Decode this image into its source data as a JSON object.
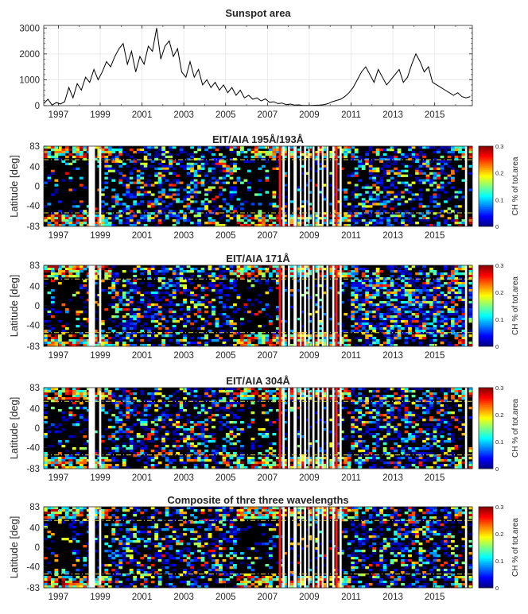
{
  "chart_data": [
    {
      "type": "line",
      "title": "Sunspot area",
      "xlabel": "",
      "ylabel": "",
      "xlim": [
        1996.3,
        2016.8
      ],
      "ylim": [
        0,
        3100
      ],
      "yticks": [
        0,
        1000,
        2000,
        3000
      ],
      "xticks": [
        "1997",
        "1999",
        "2001",
        "2003",
        "2005",
        "2007",
        "2009",
        "2011",
        "2013",
        "2015"
      ],
      "grid": true,
      "series": [
        {
          "x": [
            1996.3,
            1996.5,
            1996.7,
            1996.9,
            1997.1,
            1997.3,
            1997.5,
            1997.7,
            1997.9,
            1998.1,
            1998.3,
            1998.5,
            1998.7,
            1998.9,
            1999.1,
            1999.3,
            1999.5,
            1999.7,
            1999.9,
            2000.1,
            2000.3,
            2000.5,
            2000.7,
            2000.9,
            2001.1,
            2001.3,
            2001.5,
            2001.7,
            2001.9,
            2002.1,
            2002.3,
            2002.5,
            2002.7,
            2002.9,
            2003.1,
            2003.3,
            2003.5,
            2003.7,
            2003.9,
            2004.1,
            2004.3,
            2004.5,
            2004.7,
            2004.9,
            2005.1,
            2005.3,
            2005.5,
            2005.7,
            2005.9,
            2006.1,
            2006.3,
            2006.5,
            2006.7,
            2006.9,
            2007.1,
            2007.3,
            2007.5,
            2007.7,
            2007.9,
            2008.1,
            2008.3,
            2008.5,
            2008.7,
            2008.9,
            2009.1,
            2009.3,
            2009.5,
            2009.7,
            2009.9,
            2010.1,
            2010.3,
            2010.5,
            2010.7,
            2010.9,
            2011.1,
            2011.3,
            2011.5,
            2011.7,
            2011.9,
            2012.1,
            2012.3,
            2012.5,
            2012.7,
            2012.9,
            2013.1,
            2013.3,
            2013.5,
            2013.7,
            2013.9,
            2014.1,
            2014.3,
            2014.5,
            2014.7,
            2014.9,
            2015.1,
            2015.3,
            2015.5,
            2015.7,
            2015.9,
            2016.1,
            2016.3,
            2016.5,
            2016.7
          ],
          "values": [
            80,
            250,
            20,
            120,
            60,
            150,
            700,
            300,
            850,
            600,
            1100,
            900,
            1400,
            1000,
            1300,
            1700,
            1500,
            1900,
            2200,
            2400,
            1600,
            2100,
            1300,
            1900,
            1600,
            2300,
            2100,
            3000,
            1800,
            2300,
            2500,
            1900,
            2200,
            1300,
            1100,
            1700,
            1100,
            1400,
            800,
            1000,
            700,
            900,
            600,
            800,
            500,
            700,
            400,
            600,
            300,
            400,
            250,
            300,
            180,
            260,
            130,
            150,
            80,
            100,
            40,
            60,
            20,
            30,
            10,
            10,
            5,
            15,
            20,
            40,
            80,
            150,
            200,
            250,
            350,
            500,
            700,
            1000,
            1300,
            1500,
            1200,
            900,
            1400,
            1100,
            800,
            1000,
            1200,
            1400,
            900,
            1100,
            1600,
            2000,
            1700,
            1300,
            1500,
            900,
            800,
            700,
            600,
            500,
            400,
            500,
            350,
            300,
            350
          ]
        }
      ]
    },
    {
      "type": "heatmap",
      "title": "EIT/AIA 195Å/193Å",
      "ylabel": "Latitude [deg]",
      "yticks": [
        "83",
        "40",
        "0",
        "-40",
        "-83"
      ],
      "xticks": [
        "1997",
        "1999",
        "2001",
        "2003",
        "2005",
        "2007",
        "2009",
        "2011",
        "2013",
        "2015"
      ],
      "colorbar_label": "CH % of tot.area",
      "colorbar_ticks": [
        "0",
        "0.1",
        "0.2",
        "0.3"
      ],
      "clim": [
        0,
        0.3
      ]
    },
    {
      "type": "heatmap",
      "title": "EIT/AIA 171Å",
      "ylabel": "Latitude [deg]",
      "yticks": [
        "83",
        "40",
        "0",
        "-40",
        "-83"
      ],
      "xticks": [
        "1997",
        "1999",
        "2001",
        "2003",
        "2005",
        "2007",
        "2009",
        "2011",
        "2013",
        "2015"
      ],
      "colorbar_label": "CH % of tot.area",
      "colorbar_ticks": [
        "0",
        "0.1",
        "0.2",
        "0.3"
      ],
      "clim": [
        0,
        0.3
      ]
    },
    {
      "type": "heatmap",
      "title": "EIT/AIA 304Å",
      "ylabel": "Latitude [deg]",
      "yticks": [
        "83",
        "40",
        "0",
        "-40",
        "-83"
      ],
      "xticks": [
        "1997",
        "1999",
        "2001",
        "2003",
        "2005",
        "2007",
        "2009",
        "2011",
        "2013",
        "2015"
      ],
      "colorbar_label": "CH % of tot.area",
      "colorbar_ticks": [
        "0",
        "0.1",
        "0.2",
        "0.3"
      ],
      "clim": [
        0,
        0.3
      ]
    },
    {
      "type": "heatmap",
      "title": "Composite of thre three wavelengths",
      "ylabel": "Latitude [deg]",
      "yticks": [
        "83",
        "40",
        "0",
        "-40",
        "-83"
      ],
      "xticks": [
        "1997",
        "1999",
        "2001",
        "2003",
        "2005",
        "2007",
        "2009",
        "2011",
        "2013",
        "2015"
      ],
      "colorbar_label": "CH % of tot.area",
      "colorbar_ticks": [
        "0",
        "0.1",
        "0.2",
        "0.3"
      ],
      "clim": [
        0,
        0.3
      ]
    }
  ]
}
